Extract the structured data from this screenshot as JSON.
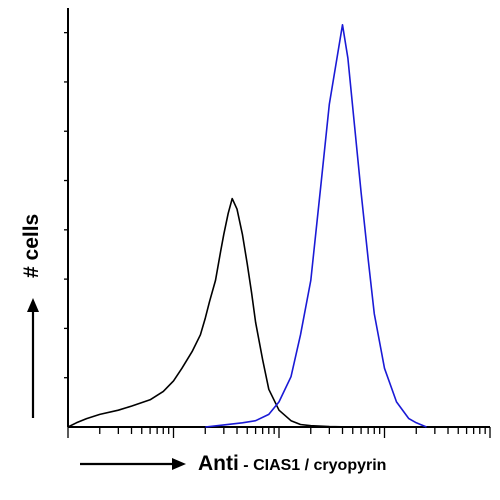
{
  "chart_data": {
    "type": "line",
    "title": "",
    "xlabel": {
      "prefix": "Anti",
      "suffix": "CIAS1 / cryopyrin"
    },
    "ylabel": "# cells",
    "x_scale": "log",
    "xlim": [
      1,
      10000
    ],
    "ylim": [
      0,
      100
    ],
    "grid": false,
    "legend": "none",
    "series": [
      {
        "color": "#000000",
        "x": [
          1,
          1.2,
          1.5,
          2,
          3,
          4,
          6,
          8,
          10,
          12,
          15,
          18,
          20,
          22,
          25,
          28,
          30,
          33,
          36,
          40,
          45,
          50,
          55,
          60,
          70,
          80,
          100,
          130,
          160,
          200,
          300,
          500,
          1000
        ],
        "y": [
          0,
          1,
          2,
          3,
          4,
          5,
          6.5,
          8.5,
          11,
          14,
          18,
          22,
          26,
          30,
          35,
          42,
          46,
          51,
          54.5,
          52,
          46,
          39,
          32,
          25,
          16,
          9,
          4,
          1.5,
          0.6,
          0.3,
          0.1,
          0,
          0
        ]
      },
      {
        "color": "#1a1ad6",
        "x": [
          20,
          30,
          45,
          60,
          80,
          100,
          130,
          160,
          200,
          250,
          300,
          400,
          450,
          520,
          600,
          700,
          800,
          1000,
          1300,
          1700,
          2000,
          2500
        ],
        "y": [
          0,
          0.5,
          1,
          1.5,
          3,
          6,
          12,
          22,
          35,
          58,
          77,
          96,
          88,
          72,
          56,
          40,
          27,
          14,
          6,
          2,
          1,
          0
        ]
      }
    ]
  }
}
